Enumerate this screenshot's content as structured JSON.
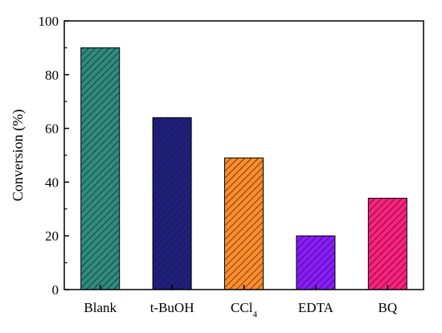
{
  "chart_data": {
    "type": "bar",
    "title": "",
    "xlabel": "",
    "ylabel": "Conversion (%)",
    "ylim": [
      0,
      100
    ],
    "yticks": [
      0,
      20,
      40,
      60,
      80,
      100
    ],
    "categories": [
      {
        "label": "Blank"
      },
      {
        "label": "t-BuOH"
      },
      {
        "label": "CCl",
        "subscript": "4"
      },
      {
        "label": "EDTA"
      },
      {
        "label": "BQ"
      }
    ],
    "values": [
      90,
      64,
      49,
      20,
      34
    ],
    "colors": [
      "#2e8b7e",
      "#1f1f80",
      "#ff8c2a",
      "#8a1aff",
      "#ff1f7e"
    ],
    "bar_pattern": "diagonal-hatch",
    "grid": false,
    "legend": "none"
  }
}
